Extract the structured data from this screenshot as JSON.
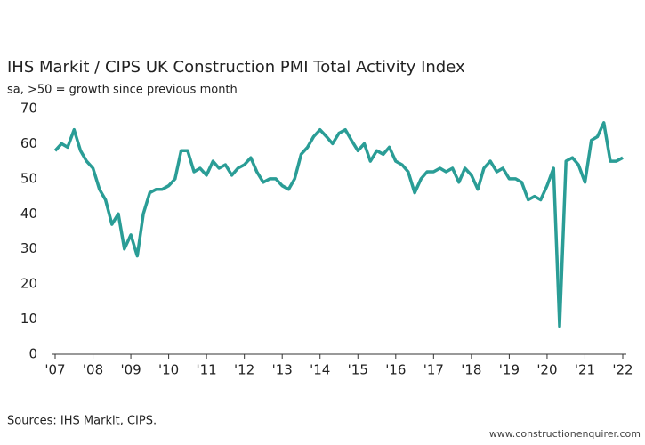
{
  "chart_data": {
    "type": "line",
    "title": "IHS Markit / CIPS UK Construction PMI Total Activity Index",
    "subtitle": "sa, >50 = growth since previous month",
    "source": "Sources: IHS Markit, CIPS.",
    "watermark": "www.constructionenquirer.com",
    "x": [
      2007.0,
      2007.17,
      2007.33,
      2007.5,
      2007.67,
      2007.83,
      2008.0,
      2008.17,
      2008.33,
      2008.5,
      2008.67,
      2008.83,
      2009.0,
      2009.17,
      2009.33,
      2009.5,
      2009.67,
      2009.83,
      2010.0,
      2010.17,
      2010.33,
      2010.5,
      2010.67,
      2010.83,
      2011.0,
      2011.17,
      2011.33,
      2011.5,
      2011.67,
      2011.83,
      2012.0,
      2012.17,
      2012.33,
      2012.5,
      2012.67,
      2012.83,
      2013.0,
      2013.17,
      2013.33,
      2013.5,
      2013.67,
      2013.83,
      2014.0,
      2014.17,
      2014.33,
      2014.5,
      2014.67,
      2014.83,
      2015.0,
      2015.17,
      2015.33,
      2015.5,
      2015.67,
      2015.83,
      2016.0,
      2016.17,
      2016.33,
      2016.5,
      2016.67,
      2016.83,
      2017.0,
      2017.17,
      2017.33,
      2017.5,
      2017.67,
      2017.83,
      2018.0,
      2018.17,
      2018.33,
      2018.5,
      2018.67,
      2018.83,
      2019.0,
      2019.17,
      2019.33,
      2019.5,
      2019.67,
      2019.83,
      2020.0,
      2020.17,
      2020.33,
      2020.5,
      2020.67,
      2020.83,
      2021.0,
      2021.17,
      2021.33,
      2021.5,
      2021.67,
      2021.83,
      2022.0
    ],
    "series": [
      {
        "color": "#2a9d96",
        "values": [
          58,
          60,
          59,
          64,
          58,
          55,
          53,
          47,
          44,
          37,
          40,
          30,
          34,
          28,
          40,
          46,
          47,
          47,
          48,
          50,
          58,
          58,
          52,
          53,
          51,
          55,
          53,
          54,
          51,
          53,
          54,
          56,
          52,
          49,
          50,
          50,
          48,
          47,
          50,
          57,
          59,
          62,
          64,
          62,
          60,
          63,
          64,
          61,
          58,
          60,
          55,
          58,
          57,
          59,
          55,
          54,
          52,
          46,
          50,
          52,
          52,
          53,
          52,
          53,
          49,
          53,
          51,
          47,
          53,
          55,
          52,
          53,
          50,
          50,
          49,
          44,
          45,
          44,
          48,
          53,
          8,
          55,
          56,
          54,
          49,
          61,
          62,
          66,
          55,
          55,
          56
        ]
      }
    ],
    "xlim": [
      2007,
      2022
    ],
    "xticks": [
      {
        "value": 2007,
        "label": "'07"
      },
      {
        "value": 2008,
        "label": "'08"
      },
      {
        "value": 2009,
        "label": "'09"
      },
      {
        "value": 2010,
        "label": "'10"
      },
      {
        "value": 2011,
        "label": "'11"
      },
      {
        "value": 2012,
        "label": "'12"
      },
      {
        "value": 2013,
        "label": "'13"
      },
      {
        "value": 2014,
        "label": "'14"
      },
      {
        "value": 2015,
        "label": "'15"
      },
      {
        "value": 2016,
        "label": "'16"
      },
      {
        "value": 2017,
        "label": "'17"
      },
      {
        "value": 2018,
        "label": "'18"
      },
      {
        "value": 2019,
        "label": "'19"
      },
      {
        "value": 2020,
        "label": "'20"
      },
      {
        "value": 2021,
        "label": "'21"
      },
      {
        "value": 2022,
        "label": "'22"
      }
    ],
    "ylim": [
      0,
      70
    ],
    "yticks": [
      0,
      10,
      20,
      30,
      40,
      50,
      60,
      70
    ],
    "grid": false
  }
}
